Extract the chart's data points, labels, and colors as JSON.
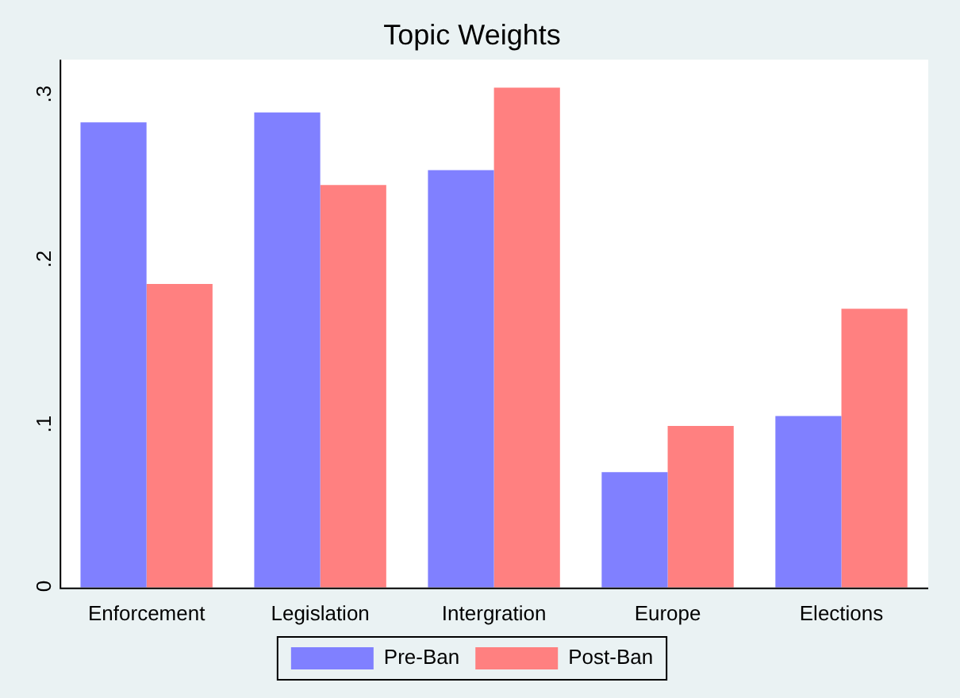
{
  "chart_data": {
    "type": "bar",
    "title": "Topic Weights",
    "categories": [
      "Enforcement",
      "Legislation",
      "Intergration",
      "Europe",
      "Elections"
    ],
    "series": [
      {
        "name": "Pre-Ban",
        "color": "#8080ff",
        "values": [
          0.282,
          0.288,
          0.253,
          0.07,
          0.104
        ]
      },
      {
        "name": "Post-Ban",
        "color": "#ff8080",
        "values": [
          0.184,
          0.244,
          0.303,
          0.098,
          0.169
        ]
      }
    ],
    "ylim": [
      0,
      0.32
    ],
    "yticks": [
      0,
      {
        "value": 0.1,
        "label": ".1"
      },
      {
        "value": 0.2,
        "label": ".2"
      },
      {
        "value": 0.3,
        "label": ".3"
      }
    ],
    "grid": false,
    "legend": "bottom"
  }
}
